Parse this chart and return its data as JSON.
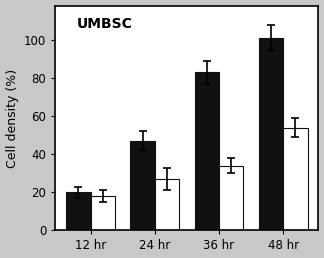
{
  "title": "UMBSC",
  "ylabel": "Cell density (%)",
  "categories": [
    "12 hr",
    "24 hr",
    "36 hr",
    "48 hr"
  ],
  "black_values": [
    20,
    47,
    83,
    101
  ],
  "white_values": [
    18,
    27,
    34,
    54
  ],
  "black_errors": [
    3,
    5,
    6,
    7
  ],
  "white_errors": [
    3,
    6,
    4,
    5
  ],
  "bar_width": 0.38,
  "ylim": [
    0,
    118
  ],
  "yticks": [
    0,
    20,
    40,
    60,
    80,
    100
  ],
  "black_color": "#111111",
  "white_color": "#ffffff",
  "edge_color": "#111111",
  "fig_background": "#c8c8c8",
  "plot_background": "#ffffff",
  "title_fontsize": 10,
  "label_fontsize": 9,
  "tick_fontsize": 8.5
}
